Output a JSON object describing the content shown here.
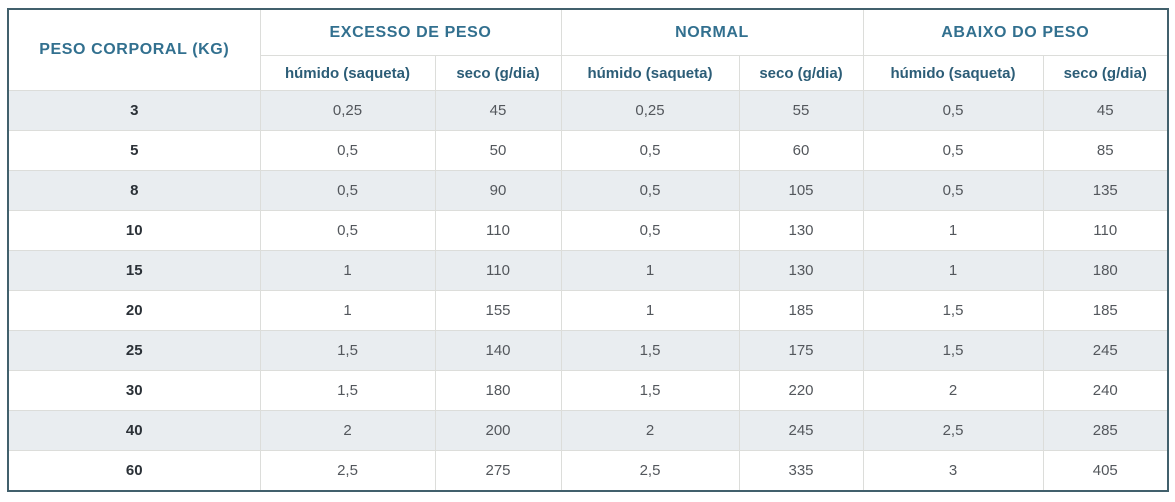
{
  "table": {
    "corner_header": "PESO CORPORAL (KG)",
    "groups": [
      {
        "label": "EXCESSO DE PESO"
      },
      {
        "label": "NORMAL"
      },
      {
        "label": "ABAIXO DO PESO"
      }
    ],
    "sub_headers": [
      "húmido (saqueta)",
      "seco (g/dia)"
    ],
    "rows": [
      {
        "weight": "3",
        "values": [
          "0,25",
          "45",
          "0,25",
          "55",
          "0,5",
          "45"
        ]
      },
      {
        "weight": "5",
        "values": [
          "0,5",
          "50",
          "0,5",
          "60",
          "0,5",
          "85"
        ]
      },
      {
        "weight": "8",
        "values": [
          "0,5",
          "90",
          "0,5",
          "105",
          "0,5",
          "135"
        ]
      },
      {
        "weight": "10",
        "values": [
          "0,5",
          "110",
          "0,5",
          "130",
          "1",
          "110"
        ]
      },
      {
        "weight": "15",
        "values": [
          "1",
          "110",
          "1",
          "130",
          "1",
          "180"
        ]
      },
      {
        "weight": "20",
        "values": [
          "1",
          "155",
          "1",
          "185",
          "1,5",
          "185"
        ]
      },
      {
        "weight": "25",
        "values": [
          "1,5",
          "140",
          "1,5",
          "175",
          "1,5",
          "245"
        ]
      },
      {
        "weight": "30",
        "values": [
          "1,5",
          "180",
          "1,5",
          "220",
          "2",
          "240"
        ]
      },
      {
        "weight": "40",
        "values": [
          "2",
          "200",
          "2",
          "245",
          "2,5",
          "285"
        ]
      },
      {
        "weight": "60",
        "values": [
          "2,5",
          "275",
          "2,5",
          "335",
          "3",
          "405"
        ]
      }
    ],
    "colors": {
      "header_text": "#32708f",
      "outer_border": "#41606c",
      "inner_border": "#dcddda",
      "stripe_background": "#e9edf0",
      "data_text": "#53575c",
      "weight_text": "#2b3137"
    }
  },
  "chart_data": {
    "type": "table",
    "title": "",
    "corner_header": "PESO CORPORAL (KG)",
    "column_groups": [
      "EXCESSO DE PESO",
      "NORMAL",
      "ABAIXO DO PESO"
    ],
    "sub_columns_per_group": [
      "húmido (saqueta)",
      "seco (g/dia)"
    ],
    "row_label_column": "PESO CORPORAL (KG)",
    "row_labels": [
      3,
      5,
      8,
      10,
      15,
      20,
      25,
      30,
      40,
      60
    ],
    "series": [
      {
        "name": "EXCESSO DE PESO - húmido (saqueta)",
        "values": [
          0.25,
          0.5,
          0.5,
          0.5,
          1,
          1,
          1.5,
          1.5,
          2,
          2.5
        ]
      },
      {
        "name": "EXCESSO DE PESO - seco (g/dia)",
        "values": [
          45,
          50,
          90,
          110,
          110,
          155,
          140,
          180,
          200,
          275
        ]
      },
      {
        "name": "NORMAL - húmido (saqueta)",
        "values": [
          0.25,
          0.5,
          0.5,
          0.5,
          1,
          1,
          1.5,
          1.5,
          2,
          2.5
        ]
      },
      {
        "name": "NORMAL - seco (g/dia)",
        "values": [
          55,
          60,
          105,
          130,
          130,
          185,
          175,
          220,
          245,
          335
        ]
      },
      {
        "name": "ABAIXO DO PESO - húmido (saqueta)",
        "values": [
          0.5,
          0.5,
          0.5,
          1,
          1,
          1.5,
          1.5,
          2,
          2.5,
          3
        ]
      },
      {
        "name": "ABAIXO DO PESO - seco (g/dia)",
        "values": [
          45,
          85,
          135,
          110,
          180,
          185,
          245,
          240,
          285,
          405
        ]
      }
    ]
  }
}
